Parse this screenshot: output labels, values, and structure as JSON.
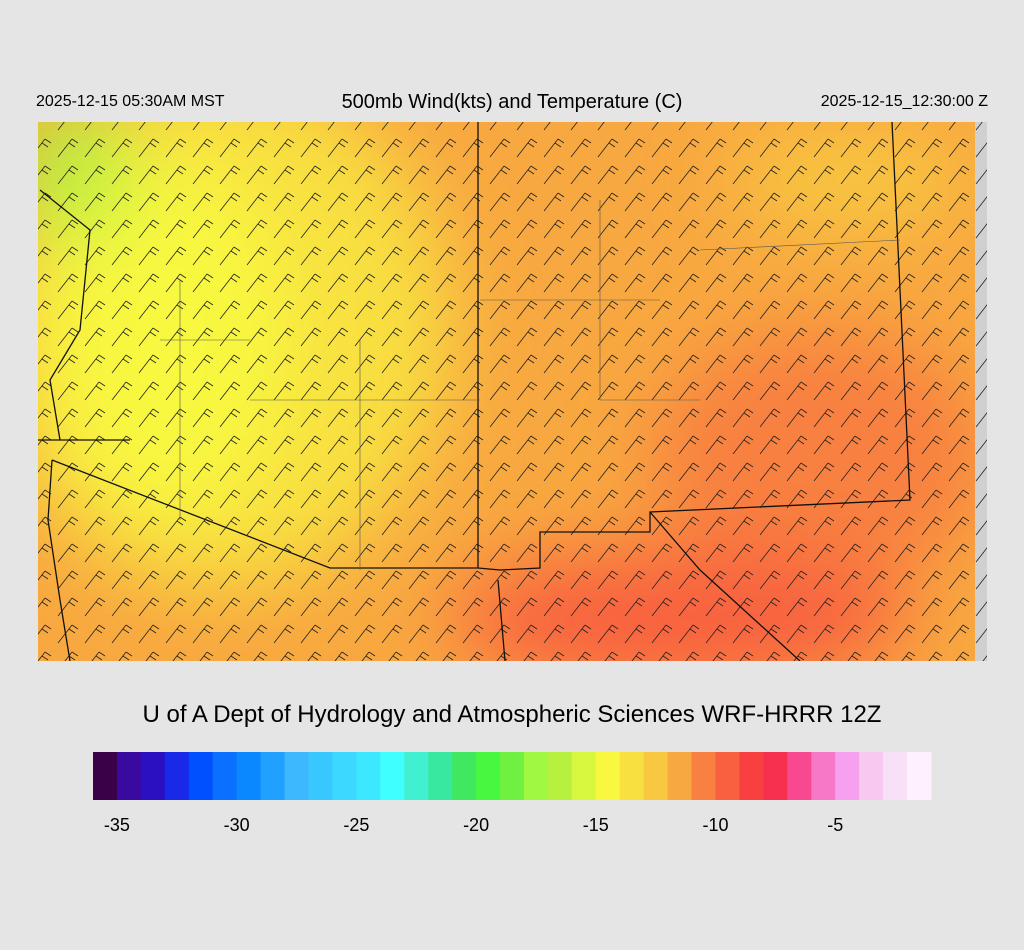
{
  "header": {
    "left": "2025-12-15 05:30AM MST",
    "title": "500mb Wind(kts) and Temperature (C)",
    "right": "2025-12-15_12:30:00 Z"
  },
  "footer": "U of A Dept of Hydrology and Atmospheric Sciences WRF-HRRR 12Z",
  "colorbar": {
    "range": [
      -36,
      -1
    ],
    "ticks": [
      -35,
      -30,
      -25,
      -20,
      -15,
      -10,
      -5
    ],
    "colors": [
      "#3a0048",
      "#3a0aa0",
      "#2a10c0",
      "#1a28e8",
      "#0050ff",
      "#0a70ff",
      "#0a88ff",
      "#20a0ff",
      "#3cb8ff",
      "#38c8ff",
      "#3cd8ff",
      "#3ce8ff",
      "#40ffff",
      "#40f0d0",
      "#38e8a0",
      "#40e860",
      "#48f840",
      "#70f040",
      "#a0f840",
      "#b8f040",
      "#d8f840",
      "#f8f840",
      "#f8e040",
      "#f8c840",
      "#f8a840",
      "#f88040",
      "#f86040",
      "#f84040",
      "#f83050",
      "#f84890",
      "#f878c8",
      "#f8a0f0",
      "#f8c8f0",
      "#f8e0f8",
      "#fff0ff"
    ]
  }
}
